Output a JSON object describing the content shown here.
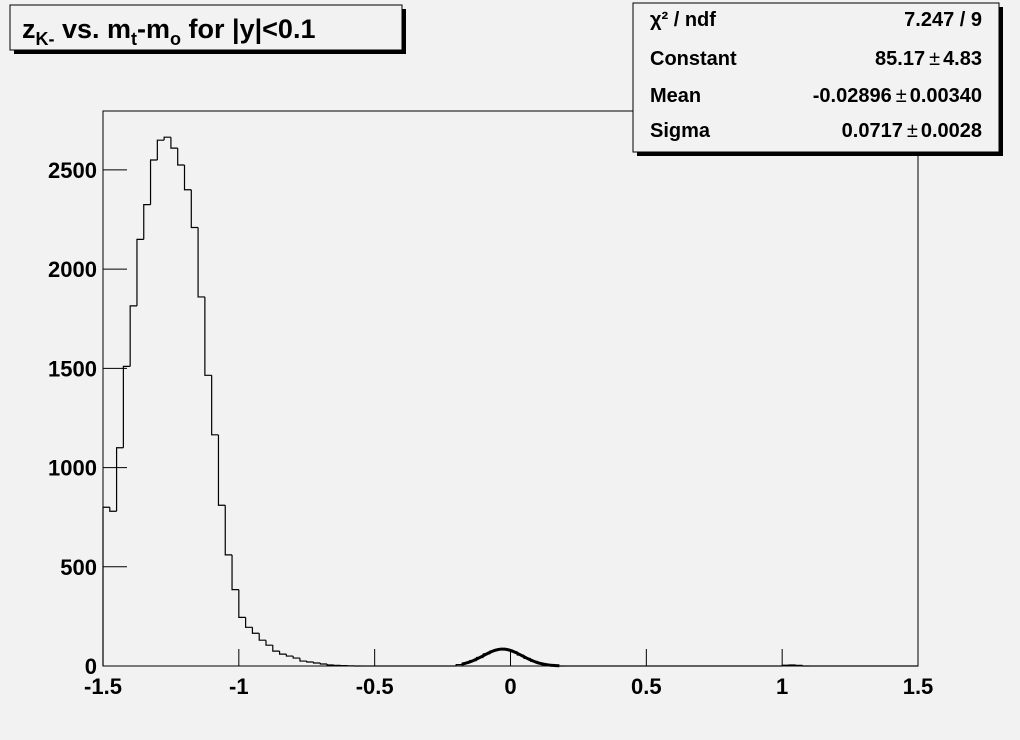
{
  "chart_data": {
    "type": "histogram",
    "title": [
      {
        "text": "z"
      },
      {
        "text": "K-",
        "sub": true
      },
      {
        "text": " vs. m"
      },
      {
        "text": "t",
        "sub": true
      },
      {
        "text": "-m"
      },
      {
        "text": "o",
        "sub": true
      },
      {
        "text": " for |y|<0.1"
      }
    ],
    "bins": [
      -1.5,
      -1.475,
      -1.45,
      -1.425,
      -1.4,
      -1.375,
      -1.35,
      -1.325,
      -1.3,
      -1.275,
      -1.25,
      -1.225,
      -1.2,
      -1.175,
      -1.15,
      -1.125,
      -1.1,
      -1.075,
      -1.05,
      -1.025,
      -1,
      -0.975,
      -0.95,
      -0.925,
      -0.9,
      -0.875,
      -0.85,
      -0.825,
      -0.8,
      -0.775,
      -0.75,
      -0.725,
      -0.7,
      -0.675,
      -0.65,
      -0.625,
      -0.6,
      -0.575,
      -0.55,
      -0.525,
      -0.5,
      -0.475,
      -0.45,
      -0.425,
      -0.4,
      -0.375,
      -0.35,
      -0.325,
      -0.3,
      -0.275,
      -0.25,
      -0.225,
      -0.2,
      -0.175,
      -0.15,
      -0.125,
      -0.1,
      -0.075,
      -0.05,
      -0.025,
      0,
      0.025,
      0.05,
      0.075,
      0.1,
      0.125,
      0.15,
      0.175,
      0.2,
      0.225,
      0.25,
      0.275,
      0.3,
      0.325,
      0.35,
      0.375,
      0.4,
      0.425,
      0.45,
      0.475,
      0.5,
      0.525,
      0.55,
      0.575,
      0.6,
      0.625,
      0.65,
      0.675,
      0.7,
      0.725,
      0.75,
      0.775,
      0.8,
      0.825,
      0.85,
      0.875,
      0.9,
      0.925,
      0.95,
      0.975,
      1,
      1.025,
      1.05,
      1.075,
      1.1,
      1.125,
      1.15,
      1.175,
      1.2,
      1.225,
      1.25,
      1.275,
      1.3,
      1.325,
      1.35,
      1.375,
      1.4,
      1.425,
      1.45,
      1.475,
      1.5
    ],
    "values": [
      800,
      780,
      1100,
      1510,
      1815,
      2150,
      2325,
      2550,
      2650,
      2665,
      2610,
      2525,
      2400,
      2210,
      1860,
      1465,
      1165,
      810,
      560,
      385,
      245,
      195,
      165,
      130,
      105,
      75,
      60,
      50,
      40,
      25,
      20,
      15,
      10,
      5,
      3,
      2,
      1,
      0,
      0,
      0,
      0,
      0,
      0,
      0,
      0,
      0,
      0,
      0,
      0,
      0,
      0,
      0,
      7,
      15,
      27,
      43,
      61,
      76,
      84,
      83,
      72,
      55,
      38,
      23,
      12,
      6,
      3,
      0,
      0,
      0,
      0,
      0,
      0,
      0,
      0,
      0,
      0,
      0,
      0,
      0,
      0,
      0,
      0,
      0,
      0,
      0,
      0,
      0,
      0,
      0,
      0,
      0,
      0,
      0,
      0,
      0,
      0,
      0,
      0,
      0,
      4,
      5,
      3,
      0,
      0,
      0,
      0,
      0,
      0,
      0,
      0,
      0,
      0,
      0,
      0,
      0,
      0,
      0,
      0,
      0
    ],
    "color": "#000000",
    "xlim": [
      -1.5,
      1.5
    ],
    "xticks": [
      -1.5,
      -1,
      -0.5,
      0,
      0.5,
      1,
      1.5
    ],
    "ylim": [
      0,
      2797
    ],
    "yticks": [
      0,
      500,
      1000,
      1500,
      2000,
      2500
    ],
    "fit": {
      "constant": 85.17,
      "mean": -0.02896,
      "sigma": 0.0717,
      "range": [
        -0.18,
        0.18
      ]
    },
    "stats": {
      "pm": "±",
      "rows": [
        {
          "label": "χ² / ndf",
          "value_label": "7.247 / 9"
        },
        {
          "label": "Constant",
          "value": 85.17,
          "error": 4.83,
          "value_label": "85.17",
          "error_label": "4.83"
        },
        {
          "label": "Mean",
          "value": -0.02896,
          "error": 0.0034,
          "value_label": "-0.02896",
          "error_label": "0.00340"
        },
        {
          "label": "Sigma",
          "value": 0.0717,
          "error": 0.0028,
          "value_label": "0.0717",
          "error_label": "0.0028"
        }
      ]
    }
  }
}
